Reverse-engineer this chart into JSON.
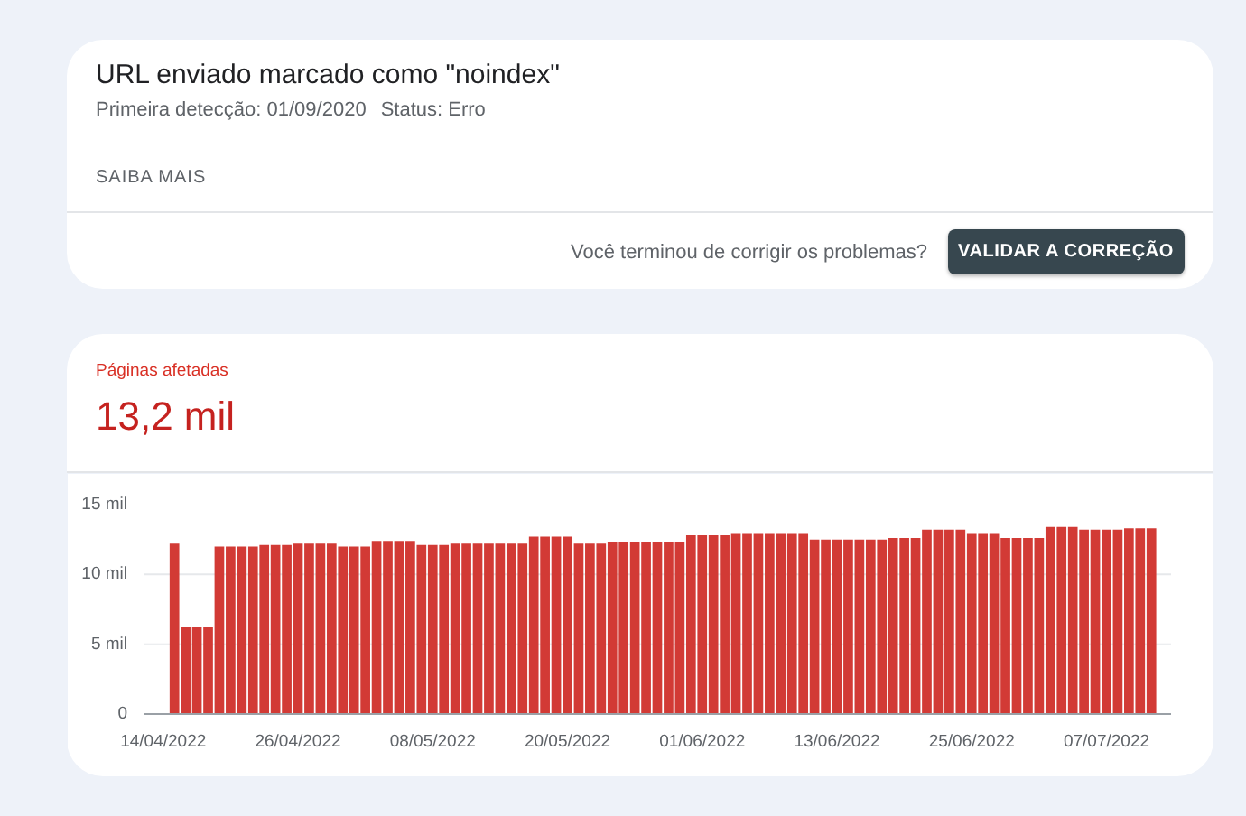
{
  "chart_data": [
    {
      "type": "other",
      "title": "URL enviado marcado como \"noindex\"",
      "annotations": [
        "Primeira detecção: 01/09/2020",
        "Status: Erro",
        "SAIBA MAIS",
        "Você terminou de corrigir os problemas?",
        "VALIDAR A CORREÇÃO"
      ]
    },
    {
      "type": "bar",
      "title": "Páginas afetadas",
      "subtitle": "13,2 mil",
      "x": [
        "2022-04-15",
        "2022-04-16",
        "2022-04-17",
        "2022-04-18",
        "2022-04-19",
        "2022-04-20",
        "2022-04-21",
        "2022-04-22",
        "2022-04-23",
        "2022-04-24",
        "2022-04-25",
        "2022-04-26",
        "2022-04-27",
        "2022-04-28",
        "2022-04-29",
        "2022-04-30",
        "2022-05-01",
        "2022-05-02",
        "2022-05-03",
        "2022-05-04",
        "2022-05-05",
        "2022-05-06",
        "2022-05-07",
        "2022-05-08",
        "2022-05-09",
        "2022-05-10",
        "2022-05-11",
        "2022-05-12",
        "2022-05-13",
        "2022-05-14",
        "2022-05-15",
        "2022-05-16",
        "2022-05-17",
        "2022-05-18",
        "2022-05-19",
        "2022-05-20",
        "2022-05-21",
        "2022-05-22",
        "2022-05-23",
        "2022-05-24",
        "2022-05-25",
        "2022-05-26",
        "2022-05-27",
        "2022-05-28",
        "2022-05-29",
        "2022-05-30",
        "2022-05-31",
        "2022-06-01",
        "2022-06-02",
        "2022-06-03",
        "2022-06-04",
        "2022-06-05",
        "2022-06-06",
        "2022-06-07",
        "2022-06-08",
        "2022-06-09",
        "2022-06-10",
        "2022-06-11",
        "2022-06-12",
        "2022-06-13",
        "2022-06-14",
        "2022-06-15",
        "2022-06-16",
        "2022-06-17",
        "2022-06-18",
        "2022-06-19",
        "2022-06-20",
        "2022-06-21",
        "2022-06-22",
        "2022-06-23",
        "2022-06-24",
        "2022-06-25",
        "2022-06-26",
        "2022-06-27",
        "2022-06-28",
        "2022-06-29",
        "2022-06-30",
        "2022-07-01",
        "2022-07-02",
        "2022-07-03",
        "2022-07-04",
        "2022-07-05",
        "2022-07-06",
        "2022-07-07",
        "2022-07-08",
        "2022-07-09",
        "2022-07-10",
        "2022-07-11"
      ],
      "values": [
        12.2,
        6.2,
        6.2,
        6.2,
        12.0,
        12.0,
        12.0,
        12.0,
        12.1,
        12.1,
        12.1,
        12.2,
        12.2,
        12.2,
        12.2,
        12.0,
        12.0,
        12.0,
        12.4,
        12.4,
        12.4,
        12.4,
        12.1,
        12.1,
        12.1,
        12.2,
        12.2,
        12.2,
        12.2,
        12.2,
        12.2,
        12.2,
        12.7,
        12.7,
        12.7,
        12.7,
        12.2,
        12.2,
        12.2,
        12.3,
        12.3,
        12.3,
        12.3,
        12.3,
        12.3,
        12.3,
        12.8,
        12.8,
        12.8,
        12.8,
        12.9,
        12.9,
        12.9,
        12.9,
        12.9,
        12.9,
        12.9,
        12.5,
        12.5,
        12.5,
        12.5,
        12.5,
        12.5,
        12.5,
        12.6,
        12.6,
        12.6,
        13.2,
        13.2,
        13.2,
        13.2,
        12.9,
        12.9,
        12.9,
        12.6,
        12.6,
        12.6,
        12.6,
        13.4,
        13.4,
        13.4,
        13.2,
        13.2,
        13.2,
        13.2,
        13.3,
        13.3,
        13.3
      ],
      "color": "#d23a35",
      "xlim": [
        "2022-04-12T06:00",
        "2022-07-12T18:00"
      ],
      "xticks": [
        {
          "value": "2022-04-14",
          "label": "14/04/2022"
        },
        {
          "value": "2022-04-26",
          "label": "26/04/2022"
        },
        {
          "value": "2022-05-08",
          "label": "08/05/2022"
        },
        {
          "value": "2022-05-20",
          "label": "20/05/2022"
        },
        {
          "value": "2022-06-01",
          "label": "01/06/2022"
        },
        {
          "value": "2022-06-13",
          "label": "13/06/2022"
        },
        {
          "value": "2022-06-25",
          "label": "25/06/2022"
        },
        {
          "value": "2022-07-07",
          "label": "07/07/2022"
        }
      ],
      "ylim": [
        0,
        15
      ],
      "yticks": [
        0,
        {
          "value": 5,
          "label": "5 mil"
        },
        {
          "value": 10,
          "label": "10 mil"
        },
        {
          "value": 15,
          "label": "15 mil"
        }
      ],
      "grid": "y"
    }
  ]
}
